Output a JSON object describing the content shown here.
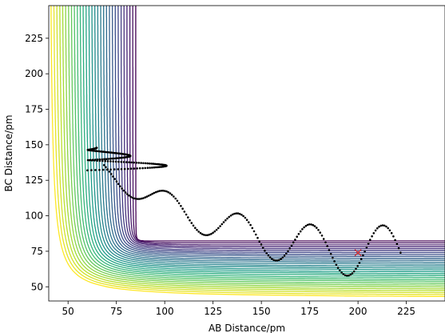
{
  "chart_data": {
    "type": "contour",
    "xlabel": "AB Distance/pm",
    "ylabel": "BC Distance/pm",
    "xlim": [
      40,
      245
    ],
    "ylim": [
      40,
      248
    ],
    "xticks": [
      50,
      75,
      100,
      125,
      150,
      175,
      200,
      225
    ],
    "yticks": [
      50,
      75,
      100,
      125,
      150,
      175,
      200,
      225
    ],
    "grid": false,
    "colormap": "viridis",
    "contour_levels": 30,
    "trajectory_color": "#000000",
    "start_marker": {
      "symbol": "x",
      "color": "#d62728",
      "x": 200,
      "y": 74
    }
  }
}
